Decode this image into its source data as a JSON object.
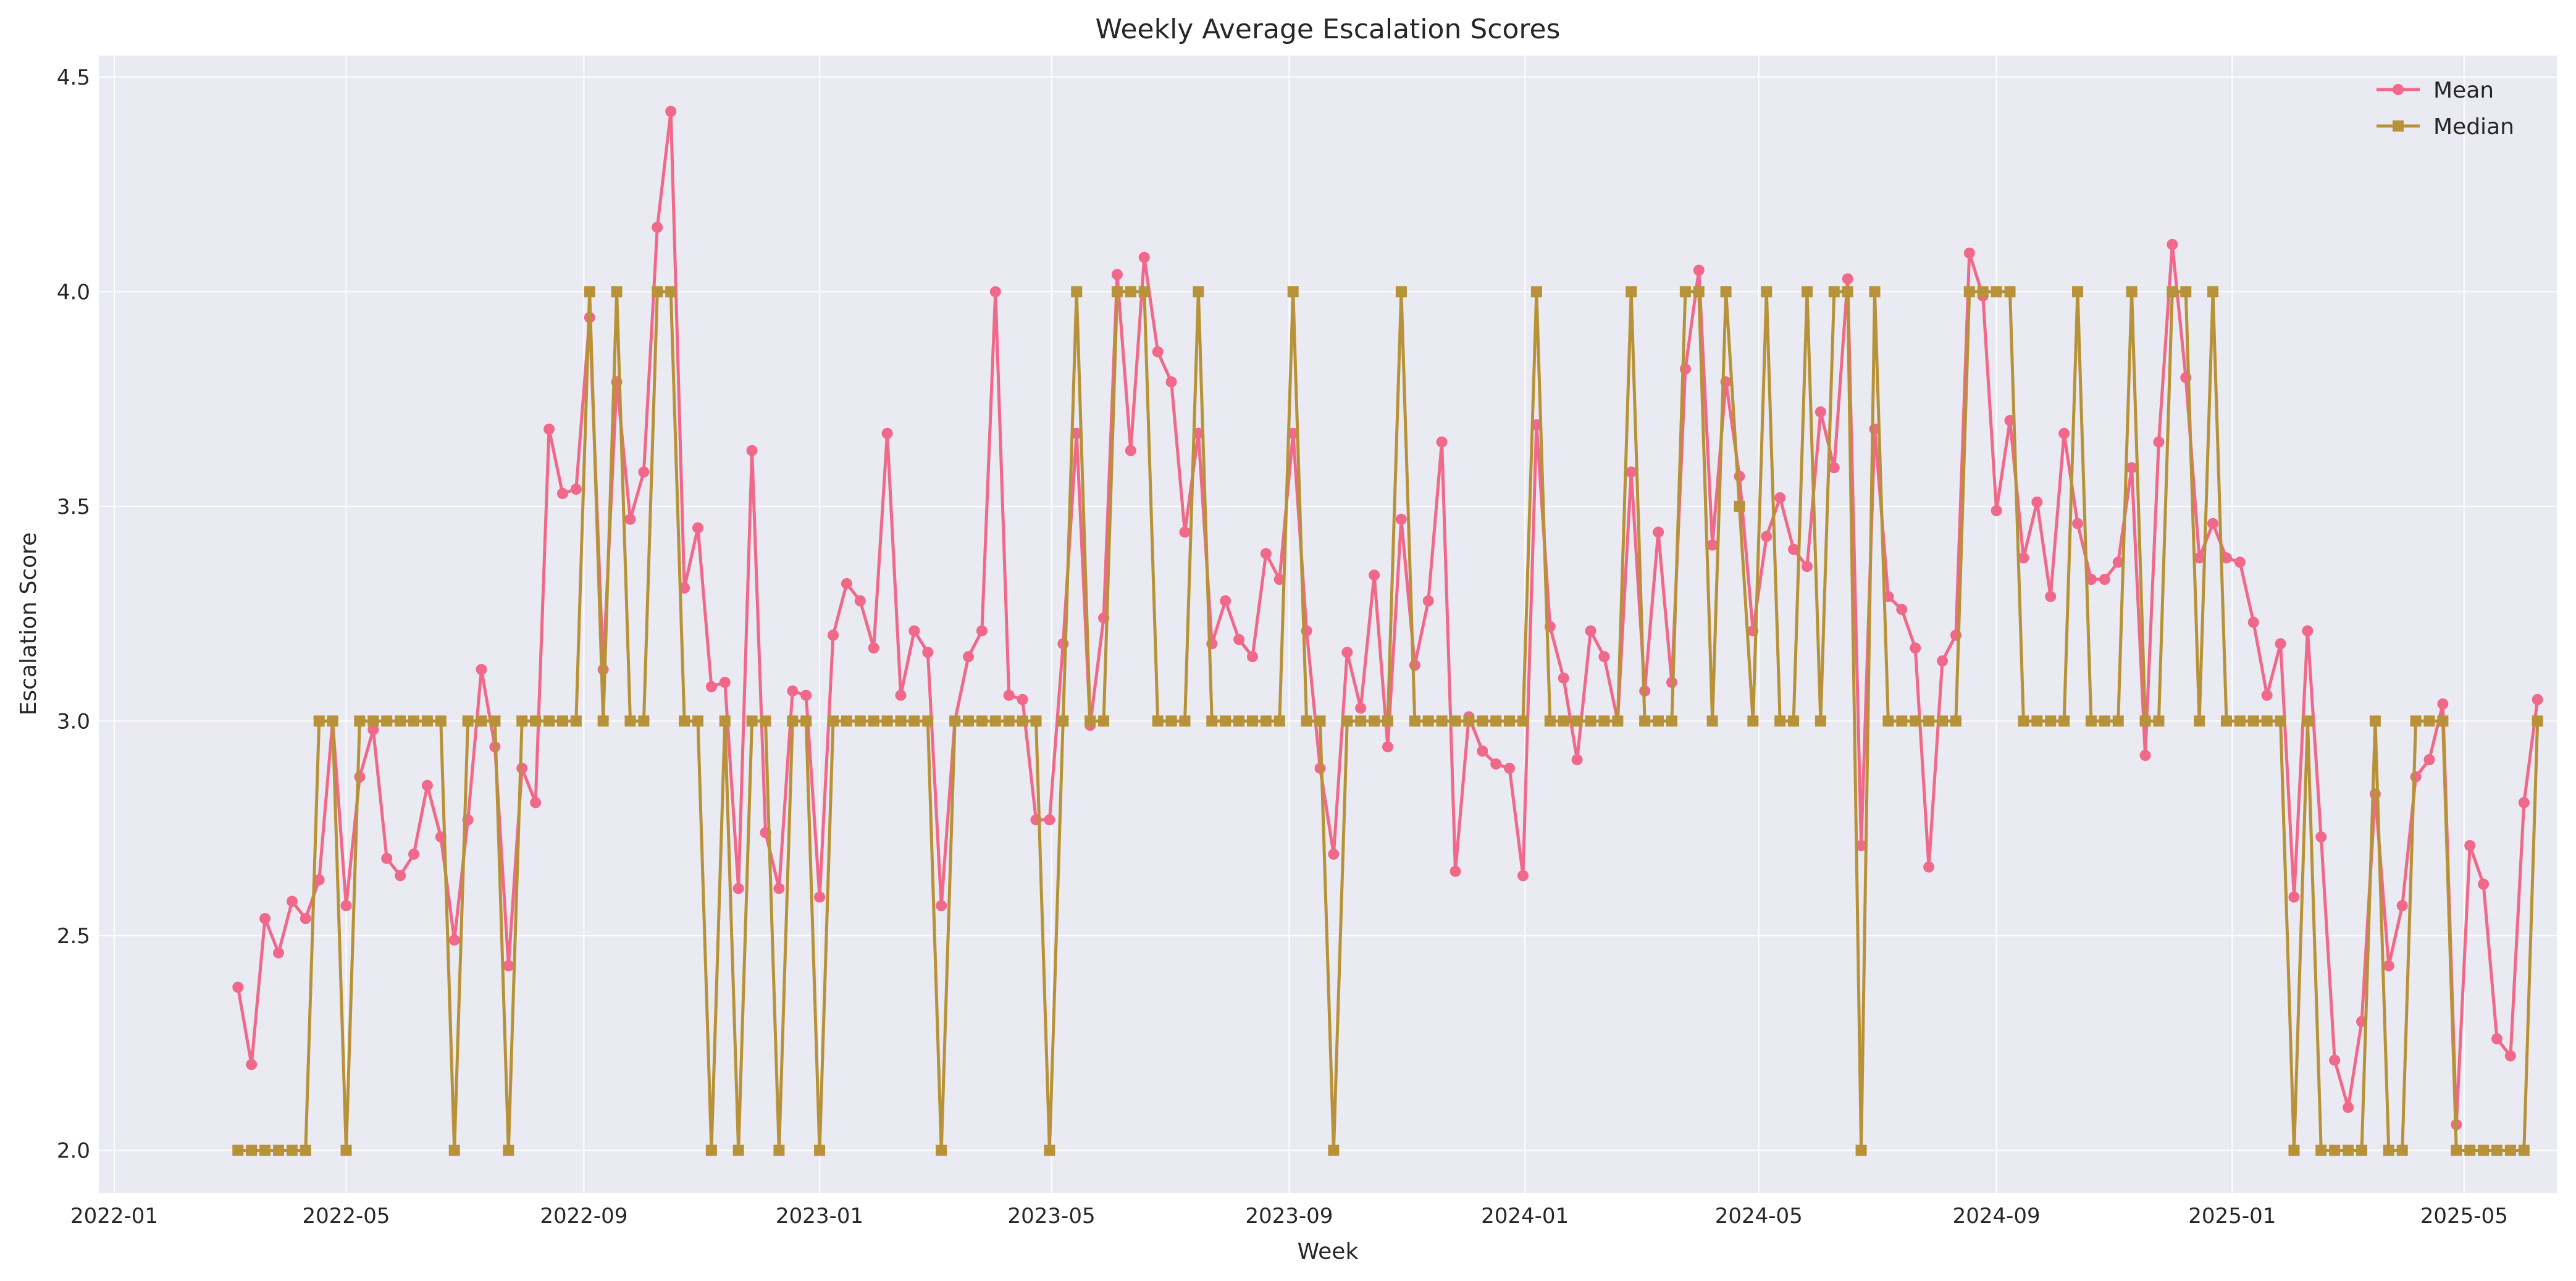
{
  "chart_data": {
    "type": "line",
    "title": "Weekly Average Escalation Scores",
    "xlabel": "Week",
    "ylabel": "Escalation Score",
    "x_start": "2022-03-06",
    "x_step_days": 7,
    "xlim": [
      "2021-12-24",
      "2025-06-18"
    ],
    "ylim": [
      1.9,
      4.55
    ],
    "x_ticks": [
      "2022-01",
      "2022-05",
      "2022-09",
      "2023-01",
      "2023-05",
      "2023-09",
      "2024-01",
      "2024-05",
      "2024-09",
      "2025-01",
      "2025-05"
    ],
    "y_ticks": [
      "2.0",
      "2.5",
      "3.0",
      "3.5",
      "4.0",
      "4.5"
    ],
    "y_tick_values": [
      2.0,
      2.5,
      3.0,
      3.5,
      4.0,
      4.5
    ],
    "grid": true,
    "legend_position": "top-right",
    "series": [
      {
        "name": "Mean",
        "color": "#f0688a",
        "marker": "circle",
        "values": [
          2.38,
          2.2,
          2.54,
          2.46,
          2.58,
          2.54,
          2.63,
          3.0,
          2.57,
          2.87,
          2.98,
          2.68,
          2.64,
          2.69,
          2.85,
          2.73,
          2.49,
          2.77,
          3.12,
          2.94,
          2.43,
          2.89,
          2.81,
          3.68,
          3.53,
          3.54,
          3.94,
          3.12,
          3.79,
          3.47,
          3.58,
          4.15,
          4.42,
          3.31,
          3.45,
          3.08,
          3.09,
          2.61,
          3.63,
          2.74,
          2.61,
          3.07,
          3.06,
          2.59,
          3.2,
          3.32,
          3.28,
          3.17,
          3.67,
          3.06,
          3.21,
          3.16,
          2.57,
          3.0,
          3.15,
          3.21,
          4.0,
          3.06,
          3.05,
          2.77,
          2.77,
          3.18,
          3.67,
          2.99,
          3.24,
          4.04,
          3.63,
          4.08,
          3.86,
          3.79,
          3.44,
          3.67,
          3.18,
          3.28,
          3.19,
          3.15,
          3.39,
          3.33,
          3.67,
          3.21,
          2.89,
          2.69,
          3.16,
          3.03,
          3.34,
          2.94,
          3.47,
          3.13,
          3.28,
          3.65,
          2.65,
          3.01,
          2.93,
          2.9,
          2.89,
          2.64,
          3.69,
          3.22,
          3.1,
          2.91,
          3.21,
          3.15,
          3.0,
          3.58,
          3.07,
          3.44,
          3.09,
          3.82,
          4.05,
          3.41,
          3.79,
          3.57,
          3.21,
          3.43,
          3.52,
          3.4,
          3.36,
          3.72,
          3.59,
          4.03,
          2.71,
          3.68,
          3.29,
          3.26,
          3.17,
          2.66,
          3.14,
          3.2,
          4.09,
          3.99,
          3.49,
          3.7,
          3.38,
          3.51,
          3.29,
          3.67,
          3.46,
          3.33,
          3.33,
          3.37,
          3.59,
          2.92,
          3.65,
          4.11,
          3.8,
          3.38,
          3.46,
          3.38,
          3.37,
          3.23,
          3.06,
          3.18,
          2.59,
          3.21,
          2.73,
          2.21,
          2.1,
          2.3,
          2.83,
          2.43,
          2.57,
          2.87,
          2.91,
          3.04,
          2.06,
          2.71,
          2.62,
          2.26,
          2.22,
          2.81,
          3.05
        ]
      },
      {
        "name": "Median",
        "color": "#b89238",
        "marker": "square",
        "values": [
          2.0,
          2.0,
          2.0,
          2.0,
          2.0,
          2.0,
          3.0,
          3.0,
          2.0,
          3.0,
          3.0,
          3.0,
          3.0,
          3.0,
          3.0,
          3.0,
          2.0,
          3.0,
          3.0,
          3.0,
          2.0,
          3.0,
          3.0,
          3.0,
          3.0,
          3.0,
          4.0,
          3.0,
          4.0,
          3.0,
          3.0,
          4.0,
          4.0,
          3.0,
          3.0,
          2.0,
          3.0,
          2.0,
          3.0,
          3.0,
          2.0,
          3.0,
          3.0,
          2.0,
          3.0,
          3.0,
          3.0,
          3.0,
          3.0,
          3.0,
          3.0,
          3.0,
          2.0,
          3.0,
          3.0,
          3.0,
          3.0,
          3.0,
          3.0,
          3.0,
          2.0,
          3.0,
          4.0,
          3.0,
          3.0,
          4.0,
          4.0,
          4.0,
          3.0,
          3.0,
          3.0,
          4.0,
          3.0,
          3.0,
          3.0,
          3.0,
          3.0,
          3.0,
          4.0,
          3.0,
          3.0,
          2.0,
          3.0,
          3.0,
          3.0,
          3.0,
          4.0,
          3.0,
          3.0,
          3.0,
          3.0,
          3.0,
          3.0,
          3.0,
          3.0,
          3.0,
          4.0,
          3.0,
          3.0,
          3.0,
          3.0,
          3.0,
          3.0,
          4.0,
          3.0,
          3.0,
          3.0,
          4.0,
          4.0,
          3.0,
          4.0,
          3.5,
          3.0,
          4.0,
          3.0,
          3.0,
          4.0,
          3.0,
          4.0,
          4.0,
          2.0,
          4.0,
          3.0,
          3.0,
          3.0,
          3.0,
          3.0,
          3.0,
          4.0,
          4.0,
          4.0,
          4.0,
          3.0,
          3.0,
          3.0,
          3.0,
          4.0,
          3.0,
          3.0,
          3.0,
          4.0,
          3.0,
          3.0,
          4.0,
          4.0,
          3.0,
          4.0,
          3.0,
          3.0,
          3.0,
          3.0,
          3.0,
          2.0,
          3.0,
          2.0,
          2.0,
          2.0,
          2.0,
          3.0,
          2.0,
          2.0,
          3.0,
          3.0,
          3.0,
          2.0,
          2.0,
          2.0,
          2.0,
          2.0,
          2.0,
          3.0
        ]
      }
    ]
  }
}
